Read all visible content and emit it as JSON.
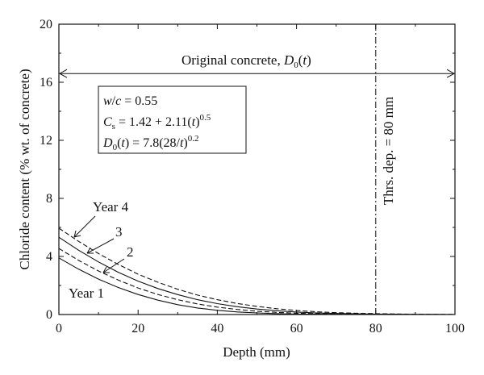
{
  "chart_data": {
    "type": "line",
    "xlabel": "Depth (mm)",
    "ylabel": "Chloride content (% wt. of concrete)",
    "xlim": [
      0,
      100
    ],
    "ylim": [
      0,
      20
    ],
    "x_ticks": [
      "0",
      "20",
      "40",
      "60",
      "80",
      "100"
    ],
    "y_ticks": [
      "0",
      "4",
      "8",
      "12",
      "16",
      "20"
    ],
    "grid": false,
    "x": [
      0,
      5,
      10,
      15,
      20,
      25,
      30,
      35,
      40,
      45,
      50,
      55,
      60,
      65,
      70,
      75,
      80,
      85,
      90,
      95,
      100
    ],
    "series": [
      {
        "name": "Year 1",
        "style": "solid",
        "values": [
          3.9,
          3.12,
          2.44,
          1.86,
          1.38,
          0.99,
          0.68,
          0.45,
          0.29,
          0.18,
          0.11,
          0.06,
          0.03,
          0.02,
          0.01,
          0.01,
          0.0,
          0.0,
          0.0,
          0.0,
          0.0
        ]
      },
      {
        "name": "2",
        "style": "dashed",
        "values": [
          4.55,
          3.73,
          3.0,
          2.37,
          1.83,
          1.38,
          1.02,
          0.73,
          0.51,
          0.35,
          0.23,
          0.15,
          0.09,
          0.06,
          0.03,
          0.02,
          0.01,
          0.01,
          0.0,
          0.0,
          0.0
        ]
      },
      {
        "name": "3",
        "style": "solid",
        "values": [
          5.32,
          4.43,
          3.62,
          2.91,
          2.3,
          1.79,
          1.37,
          1.02,
          0.75,
          0.54,
          0.38,
          0.26,
          0.17,
          0.11,
          0.07,
          0.05,
          0.03,
          0.02,
          0.01,
          0.01,
          0.0
        ]
      },
      {
        "name": "Year 4",
        "style": "dashed",
        "values": [
          5.95,
          5.04,
          4.2,
          3.45,
          2.78,
          2.22,
          1.74,
          1.34,
          1.02,
          0.76,
          0.56,
          0.4,
          0.28,
          0.19,
          0.13,
          0.09,
          0.06,
          0.04,
          0.02,
          0.01,
          0.01
        ]
      }
    ],
    "annotations": {
      "original_concrete": "Original concrete, D0(t)",
      "threshold_depth": "Thrs. dep. = 80 mm",
      "threshold_x": 80,
      "arrow_y": 16.6,
      "curve_labels": [
        "Year 4",
        "3",
        "2",
        "Year 1"
      ]
    },
    "parameters": [
      "w/c = 0.55",
      "Cs = 1.42 + 2.11(t)^0.5",
      "D0(t) = 7.8(28/t)^0.2"
    ]
  }
}
